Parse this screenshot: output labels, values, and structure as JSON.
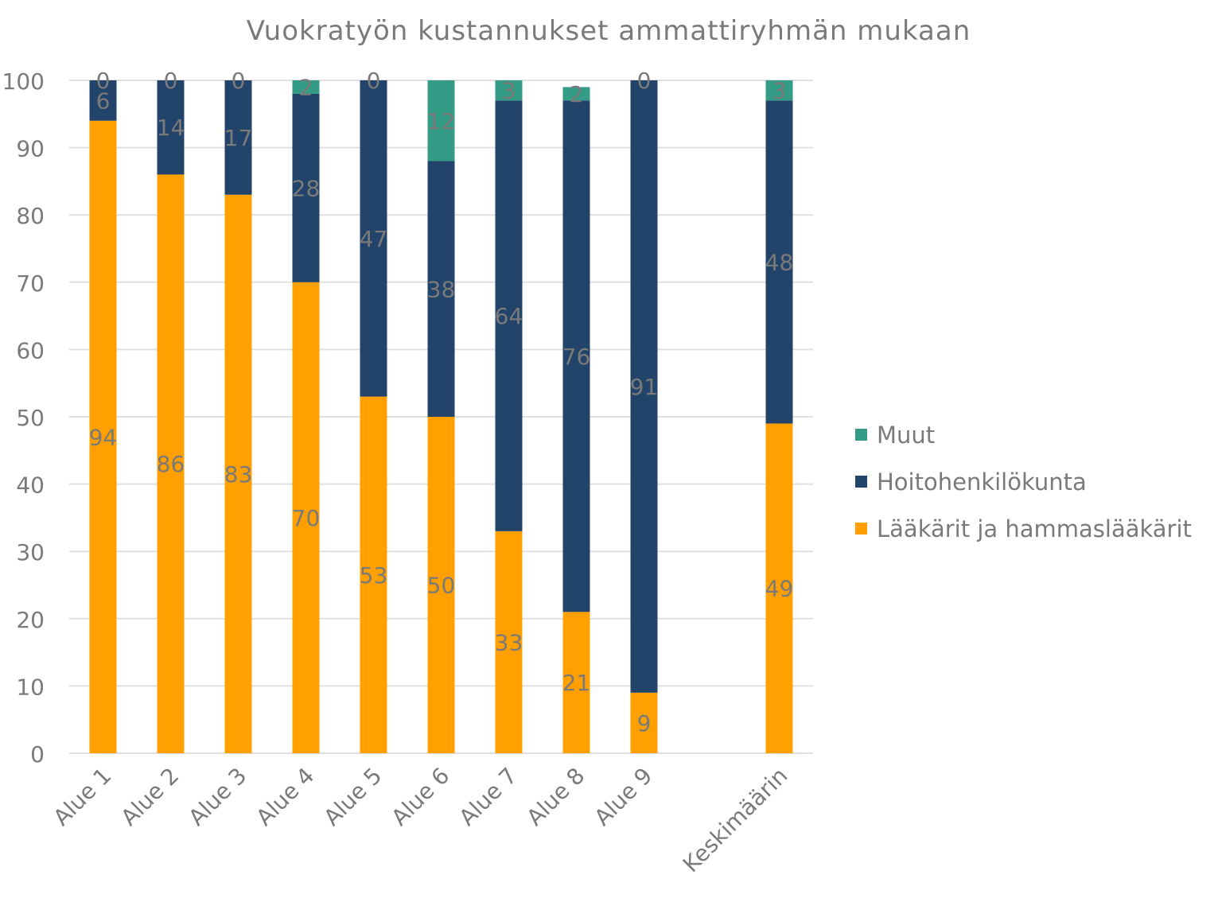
{
  "chart_data": {
    "type": "bar",
    "stacked": true,
    "title": "Vuokratyön kustannukset ammattiryhmän mukaan",
    "xlabel": "",
    "ylabel": "",
    "ylim": [
      0,
      100
    ],
    "yticks": [
      0,
      10,
      20,
      30,
      40,
      50,
      60,
      70,
      80,
      90,
      100
    ],
    "grid": true,
    "legend_position": "right",
    "categories": [
      "Alue 1",
      "Alue 2",
      "Alue 3",
      "Alue 4",
      "Alue 5",
      "Alue 6",
      "Alue 7",
      "Alue 8",
      "Alue 9",
      "",
      "Keskimäärin"
    ],
    "series": [
      {
        "name": "Lääkärit ja hammaslääkärit",
        "color": "#FFA000",
        "values": [
          94,
          86,
          83,
          70,
          53,
          50,
          33,
          21,
          9,
          null,
          49
        ]
      },
      {
        "name": "Hoitohenkilökunta",
        "color": "#22446A",
        "values": [
          6,
          14,
          17,
          28,
          47,
          38,
          64,
          76,
          91,
          null,
          48
        ]
      },
      {
        "name": "Muut",
        "color": "#349C86",
        "values": [
          0,
          0,
          0,
          2,
          0,
          12,
          3,
          2,
          0,
          null,
          3
        ]
      }
    ],
    "legend_order": [
      "Muut",
      "Hoitohenkilökunta",
      "Lääkärit ja hammaslääkärit"
    ]
  }
}
